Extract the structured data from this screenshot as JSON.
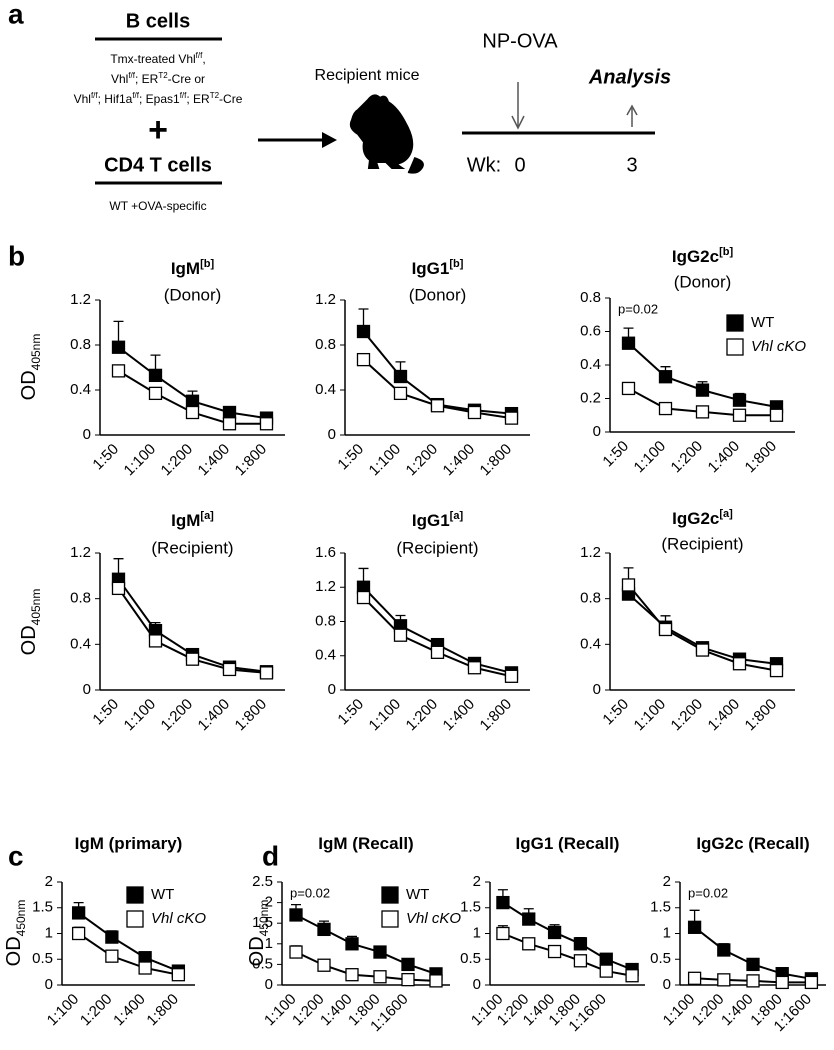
{
  "panel_labels": [
    "a",
    "b",
    "c",
    "d"
  ],
  "schematic": {
    "b_cells": "B cells",
    "b_cells_detail": [
      [
        "Tmx-treated Vhl",
        "f/f",
        ","
      ],
      [
        "Vhl",
        "f/f",
        "; ER",
        "T2",
        "-Cre or"
      ],
      [
        "Vhl",
        "f/f",
        "; Hif1a",
        "f/f",
        "; Epas1",
        "f/f",
        "; ER",
        "T2",
        "-Cre"
      ]
    ],
    "plus": "+",
    "cd4": "CD4 T cells",
    "cd4_detail": "WT +OVA-specific",
    "recipient": "Recipient mice",
    "np_ova": "NP-OVA",
    "analysis": "Analysis",
    "wk": "Wk:",
    "wk0": "0",
    "wk3": "3"
  },
  "chart_data": [
    {
      "type": "line",
      "title": "IgM",
      "title_sup": "[b]",
      "subtitle": "(Donor)",
      "ylabel": "OD",
      "ylabel_sub": "405nm",
      "categories": [
        "1:50",
        "1:100",
        "1:200",
        "1:400",
        "1:800"
      ],
      "series": [
        {
          "color": "#000000",
          "values": [
            0.78,
            0.53,
            0.3,
            0.2,
            0.15
          ],
          "errors": [
            0.23,
            0.18,
            0.09,
            0.05,
            0.03
          ]
        },
        {
          "color": "#ffffff",
          "values": [
            0.57,
            0.37,
            0.2,
            0.1,
            0.1
          ],
          "errors": [
            0.02,
            0.02,
            0.02,
            0.02,
            0.02
          ]
        }
      ],
      "ylim": [
        0,
        1.2
      ],
      "yticks": [
        0,
        0.4,
        0.8,
        1.2
      ]
    },
    {
      "type": "line",
      "title": "IgG1",
      "title_sup": "[b]",
      "subtitle": "(Donor)",
      "categories": [
        "1:50",
        "1:100",
        "1:200",
        "1:400",
        "1:800"
      ],
      "series": [
        {
          "color": "#000000",
          "values": [
            0.92,
            0.52,
            0.27,
            0.22,
            0.19
          ],
          "errors": [
            0.2,
            0.13,
            0.04,
            0.03,
            0.02
          ]
        },
        {
          "color": "#ffffff",
          "values": [
            0.67,
            0.37,
            0.26,
            0.2,
            0.15
          ],
          "errors": [
            0.03,
            0.02,
            0.02,
            0.02,
            0.02
          ]
        }
      ],
      "ylim": [
        0,
        1.2
      ],
      "yticks": [
        0,
        0.4,
        0.8,
        1.2
      ]
    },
    {
      "type": "line",
      "title": "IgG2c",
      "title_sup": "[b]",
      "subtitle": "(Donor)",
      "annotation": "p=0.02",
      "legend": "upper right",
      "categories": [
        "1:50",
        "1:100",
        "1:200",
        "1:400",
        "1:800"
      ],
      "series": [
        {
          "name": "WT",
          "color": "#000000",
          "values": [
            0.53,
            0.33,
            0.25,
            0.19,
            0.15
          ],
          "errors": [
            0.09,
            0.06,
            0.05,
            0.04,
            0.02
          ]
        },
        {
          "name": "Vhl cKO",
          "color": "#ffffff",
          "values": [
            0.26,
            0.14,
            0.12,
            0.1,
            0.1
          ],
          "errors": [
            0.02,
            0.02,
            0.02,
            0.02,
            0.02
          ]
        }
      ],
      "ylim": [
        0,
        0.8
      ],
      "yticks": [
        0,
        0.2,
        0.4,
        0.6,
        0.8
      ]
    },
    {
      "type": "line",
      "title": "IgM",
      "title_sup": "[a]",
      "subtitle": "(Recipient)",
      "ylabel": "OD",
      "ylabel_sub": "405nm",
      "categories": [
        "1:50",
        "1:100",
        "1:200",
        "1:400",
        "1:800"
      ],
      "series": [
        {
          "color": "#000000",
          "values": [
            0.97,
            0.52,
            0.31,
            0.2,
            0.16
          ],
          "errors": [
            0.18,
            0.07,
            0.03,
            0.03,
            0.02
          ]
        },
        {
          "color": "#ffffff",
          "values": [
            0.89,
            0.43,
            0.27,
            0.18,
            0.15
          ],
          "errors": [
            0.03,
            0.02,
            0.02,
            0.02,
            0.02
          ]
        }
      ],
      "ylim": [
        0,
        1.2
      ],
      "yticks": [
        0,
        0.4,
        0.8,
        1.2
      ]
    },
    {
      "type": "line",
      "title": "IgG1",
      "title_sup": "[a]",
      "subtitle": "(Recipient)",
      "categories": [
        "1:50",
        "1:100",
        "1:200",
        "1:400",
        "1:800"
      ],
      "series": [
        {
          "color": "#000000",
          "values": [
            1.2,
            0.75,
            0.53,
            0.31,
            0.2
          ],
          "errors": [
            0.22,
            0.12,
            0.07,
            0.04,
            0.02
          ]
        },
        {
          "color": "#ffffff",
          "values": [
            1.08,
            0.64,
            0.44,
            0.26,
            0.16
          ],
          "errors": [
            0.03,
            0.03,
            0.02,
            0.02,
            0.02
          ]
        }
      ],
      "ylim": [
        0,
        1.6
      ],
      "yticks": [
        0,
        0.4,
        0.8,
        1.2,
        1.6
      ]
    },
    {
      "type": "line",
      "title": "IgG2c",
      "title_sup": "[a]",
      "subtitle": "(Recipient)",
      "categories": [
        "1:50",
        "1:100",
        "1:200",
        "1:400",
        "1:800"
      ],
      "series": [
        {
          "color": "#000000",
          "values": [
            0.84,
            0.55,
            0.37,
            0.27,
            0.23
          ],
          "errors": [
            0.1,
            0.1,
            0.04,
            0.03,
            0.02
          ]
        },
        {
          "color": "#ffffff",
          "values": [
            0.92,
            0.53,
            0.35,
            0.23,
            0.17
          ],
          "errors": [
            0.15,
            0.05,
            0.03,
            0.02,
            0.02
          ]
        }
      ],
      "ylim": [
        0,
        1.2
      ],
      "yticks": [
        0,
        0.4,
        0.8,
        1.2
      ]
    },
    {
      "type": "line",
      "title": "IgM (primary)",
      "ylabel": "OD",
      "ylabel_sub": "450nm",
      "legend": "upper right",
      "categories": [
        "1:100",
        "1:200",
        "1:400",
        "1:800"
      ],
      "series": [
        {
          "name": "WT",
          "color": "#000000",
          "values": [
            1.4,
            0.93,
            0.53,
            0.27
          ],
          "errors": [
            0.2,
            0.12,
            0.06,
            0.03
          ]
        },
        {
          "name": "Vhl cKO",
          "color": "#ffffff",
          "values": [
            1.0,
            0.56,
            0.33,
            0.2
          ],
          "errors": [
            0.12,
            0.06,
            0.03,
            0.02
          ]
        }
      ],
      "ylim": [
        0,
        2
      ],
      "yticks": [
        0,
        0.5,
        1,
        1.5,
        2
      ]
    },
    {
      "type": "line",
      "title": "IgM (Recall)",
      "ylabel": "OD",
      "ylabel_sub": "450nm",
      "annotation": "p=0.02",
      "legend": "upper right",
      "categories": [
        "1:100",
        "1:200",
        "1:400",
        "1:800",
        "1:1600",
        null
      ],
      "series": [
        {
          "name": "WT",
          "color": "#000000",
          "values": [
            1.7,
            1.35,
            1.0,
            0.8,
            0.5,
            0.27
          ],
          "errors": [
            0.25,
            0.2,
            0.18,
            0.12,
            0.08,
            0.05
          ]
        },
        {
          "name": "Vhl cKO",
          "color": "#ffffff",
          "values": [
            0.8,
            0.48,
            0.25,
            0.2,
            0.13,
            0.1
          ],
          "errors": [
            0.15,
            0.1,
            0.05,
            0.03,
            0.02,
            0.02
          ]
        }
      ],
      "ylim": [
        0,
        2.5
      ],
      "yticks": [
        0,
        0.5,
        1,
        1.5,
        2,
        2.5
      ]
    },
    {
      "type": "line",
      "title": "IgG1 (Recall)",
      "categories": [
        "1:100",
        "1:200",
        "1:400",
        "1:800",
        "1:1600",
        null
      ],
      "series": [
        {
          "color": "#000000",
          "values": [
            1.6,
            1.28,
            1.02,
            0.8,
            0.5,
            0.3
          ],
          "errors": [
            0.25,
            0.2,
            0.15,
            0.12,
            0.08,
            0.05
          ]
        },
        {
          "color": "#ffffff",
          "values": [
            1.0,
            0.8,
            0.65,
            0.47,
            0.27,
            0.18
          ],
          "errors": [
            0.15,
            0.1,
            0.07,
            0.05,
            0.03,
            0.02
          ]
        }
      ],
      "ylim": [
        0,
        2
      ],
      "yticks": [
        0,
        0.5,
        1,
        1.5,
        2
      ]
    },
    {
      "type": "line",
      "title": "IgG2c (Recall)",
      "annotation": "p=0.02",
      "categories": [
        "1:100",
        "1:200",
        "1:400",
        "1:800",
        "1:1600"
      ],
      "series": [
        {
          "color": "#000000",
          "values": [
            1.12,
            0.68,
            0.4,
            0.22,
            0.12
          ],
          "errors": [
            0.33,
            0.12,
            0.05,
            0.03,
            0.02
          ]
        },
        {
          "color": "#ffffff",
          "values": [
            0.13,
            0.1,
            0.08,
            0.05,
            0.05
          ],
          "errors": [
            0.02,
            0.02,
            0.02,
            0.02,
            0.02
          ]
        }
      ],
      "ylim": [
        0,
        2
      ],
      "yticks": [
        0,
        0.5,
        1,
        1.5,
        2
      ]
    }
  ]
}
